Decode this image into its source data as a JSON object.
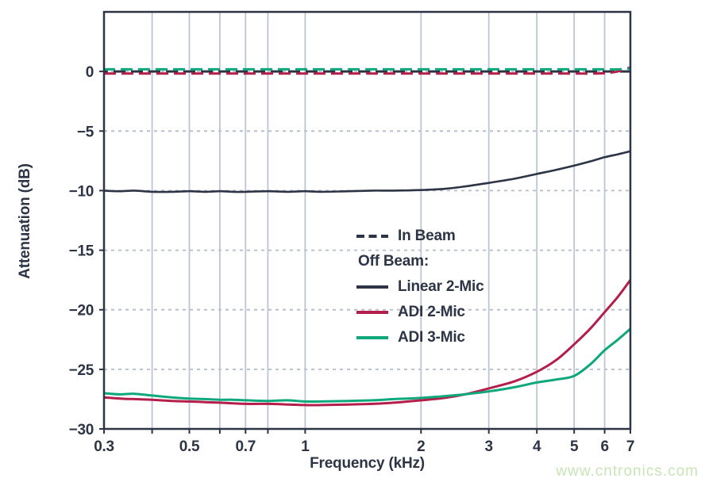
{
  "watermark": {
    "text": "www.cntronics.com"
  },
  "colors": {
    "dark": "#2d3445",
    "red": "#b41e4b",
    "green": "#0ea87c",
    "vgrid": "#bdc4d2",
    "hgrid": "#b4bbc9",
    "text": "#2d3445",
    "watermark": "#c9e4b8",
    "background": "#ffffff"
  },
  "legend": {
    "rows": [
      {
        "label": "In Beam",
        "sample": "dashed",
        "color_key": "dark"
      },
      {
        "label": "Off Beam:",
        "sample": "none",
        "color_key": ""
      },
      {
        "label": "Linear 2-Mic",
        "sample": "solid",
        "color_key": "dark"
      },
      {
        "label": "ADI 2-Mic",
        "sample": "solid",
        "color_key": "red"
      },
      {
        "label": "ADI 3-Mic",
        "sample": "solid",
        "color_key": "green"
      }
    ]
  },
  "chart_data": {
    "type": "line",
    "title": "",
    "xlabel": "Frequency (kHz)",
    "ylabel": "Attenuation (dB)",
    "x_scale": "log",
    "xlim": [
      0.3,
      7
    ],
    "ylim": [
      -30,
      5
    ],
    "grid": true,
    "legend_position": "inside-center-left",
    "x_gridlines": [
      0.4,
      0.5,
      0.6,
      0.7,
      0.8,
      1,
      2,
      3,
      4,
      5,
      6,
      7
    ],
    "x_tick_marks": [
      0.3,
      0.4,
      0.5,
      0.6,
      0.7,
      0.8,
      1,
      2,
      3,
      4,
      5,
      6,
      7
    ],
    "x_ticks": [
      0.3,
      0.5,
      0.7,
      1,
      2,
      3,
      4,
      5,
      6,
      7
    ],
    "x_tick_labels": [
      "0.3",
      "0.5",
      "0.7",
      "1",
      "2",
      "3",
      "4",
      "5",
      "6",
      "7"
    ],
    "y_gridlines": [
      0,
      -5,
      -10,
      -15,
      -20,
      -25
    ],
    "y_ticks": [
      0,
      -5,
      -10,
      -15,
      -20,
      -25,
      -30
    ],
    "y_tick_labels": [
      "0",
      "−5",
      "−10",
      "−15",
      "−20",
      "−25",
      "−30"
    ],
    "x": [
      0.3,
      0.33,
      0.36,
      0.4,
      0.45,
      0.5,
      0.55,
      0.6,
      0.65,
      0.7,
      0.8,
      0.9,
      1.0,
      1.1,
      1.3,
      1.5,
      1.7,
      2.0,
      2.3,
      2.6,
      3.0,
      3.5,
      4.0,
      4.5,
      5.0,
      5.5,
      6.0,
      6.5,
      7.0
    ],
    "series": [
      {
        "name": "In Beam (Linear 2-Mic)",
        "beam": "in",
        "style": "dashed",
        "color_key": "dark",
        "width": 3,
        "dash_offset": 10,
        "values": [
          0,
          0,
          0,
          0,
          0,
          0,
          0,
          0,
          0,
          0,
          0,
          0,
          0,
          0,
          0,
          0,
          0,
          0,
          0,
          0,
          0,
          0,
          0,
          0,
          0,
          0,
          0,
          0,
          0
        ]
      },
      {
        "name": "In Beam (ADI 2-Mic)",
        "beam": "in",
        "style": "dashed",
        "color_key": "red",
        "width": 3,
        "dash_offset": 0,
        "values": [
          -0.18,
          -0.18,
          -0.18,
          -0.18,
          -0.18,
          -0.18,
          -0.18,
          -0.18,
          -0.18,
          -0.18,
          -0.18,
          -0.18,
          -0.18,
          -0.18,
          -0.18,
          -0.18,
          -0.18,
          -0.18,
          -0.18,
          -0.18,
          -0.18,
          -0.18,
          -0.18,
          -0.18,
          -0.18,
          -0.18,
          -0.15,
          0.0,
          0.35
        ]
      },
      {
        "name": "In Beam (ADI 3-Mic)",
        "beam": "in",
        "style": "dashed",
        "color_key": "green",
        "width": 3,
        "dash_offset": 1,
        "values": [
          0.18,
          0.18,
          0.18,
          0.18,
          0.18,
          0.18,
          0.18,
          0.18,
          0.18,
          0.18,
          0.18,
          0.18,
          0.18,
          0.18,
          0.18,
          0.18,
          0.18,
          0.18,
          0.18,
          0.18,
          0.18,
          0.18,
          0.18,
          0.18,
          0.18,
          0.18,
          0.18,
          0.18,
          0.25
        ]
      },
      {
        "name": "Off Beam Linear 2-Mic",
        "beam": "off",
        "style": "solid",
        "color_key": "dark",
        "width": 2.6,
        "dash_offset": 0,
        "values": [
          -10.0,
          -10.05,
          -10.0,
          -10.1,
          -10.1,
          -10.05,
          -10.1,
          -10.05,
          -10.1,
          -10.1,
          -10.05,
          -10.1,
          -10.05,
          -10.1,
          -10.05,
          -10.0,
          -10.0,
          -9.95,
          -9.85,
          -9.65,
          -9.35,
          -9.0,
          -8.6,
          -8.25,
          -7.9,
          -7.55,
          -7.2,
          -6.95,
          -6.7
        ]
      },
      {
        "name": "Off Beam ADI 2-Mic",
        "beam": "off",
        "style": "solid",
        "color_key": "red",
        "width": 3,
        "dash_offset": 0,
        "values": [
          -27.35,
          -27.45,
          -27.5,
          -27.55,
          -27.65,
          -27.7,
          -27.75,
          -27.8,
          -27.85,
          -27.9,
          -27.9,
          -27.95,
          -28.0,
          -28.0,
          -27.95,
          -27.9,
          -27.8,
          -27.6,
          -27.4,
          -27.1,
          -26.6,
          -26.0,
          -25.2,
          -24.2,
          -22.9,
          -21.6,
          -20.2,
          -18.9,
          -17.5
        ]
      },
      {
        "name": "Off Beam ADI 3-Mic",
        "beam": "off",
        "style": "solid",
        "color_key": "green",
        "width": 3,
        "dash_offset": 0,
        "values": [
          -27.0,
          -27.1,
          -27.05,
          -27.2,
          -27.35,
          -27.45,
          -27.5,
          -27.55,
          -27.55,
          -27.6,
          -27.65,
          -27.6,
          -27.7,
          -27.7,
          -27.65,
          -27.6,
          -27.5,
          -27.4,
          -27.25,
          -27.1,
          -26.85,
          -26.5,
          -26.1,
          -25.85,
          -25.55,
          -24.6,
          -23.4,
          -22.5,
          -21.6
        ]
      }
    ]
  }
}
